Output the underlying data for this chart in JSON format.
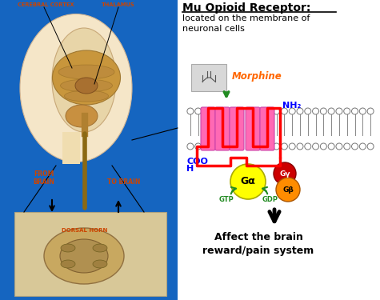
{
  "title": "Mu Opioid Receptor:",
  "subtitle": "located on the membrane of\nneuronal cells",
  "morphine_label": "Morphine",
  "nh2_label": "NH₂",
  "cooh_label": "COO\nH",
  "gtp_label": "GTP",
  "gdp_label": "GDP",
  "galpha_label": "Gα",
  "ggamma_label": "Gγ",
  "gbeta_label": "Gβ",
  "affect_label": "Affect the brain\nreward/pain system",
  "left_bg_color": "#1565C0",
  "membrane_color": "#cccccc",
  "receptor_color": "#FF69B4",
  "loop_color": "#FF0000",
  "galpha_color": "#FFFF00",
  "ggamma_color": "#CC0000",
  "gbeta_color": "#FF8C00",
  "morphine_color": "#FF6600",
  "gtp_gdp_color": "#228B22",
  "cooh_color": "#0000FF",
  "nh2_color": "#0000FF",
  "brain_labels": {
    "cerebral_cortex": "CEREBRAL CORTEX",
    "thalamus": "THALAMUS",
    "from_brain": "FROM\nBRAIN",
    "to_brain": "TO BRAIN",
    "dorsal_horn": "DORSAL HORN"
  }
}
